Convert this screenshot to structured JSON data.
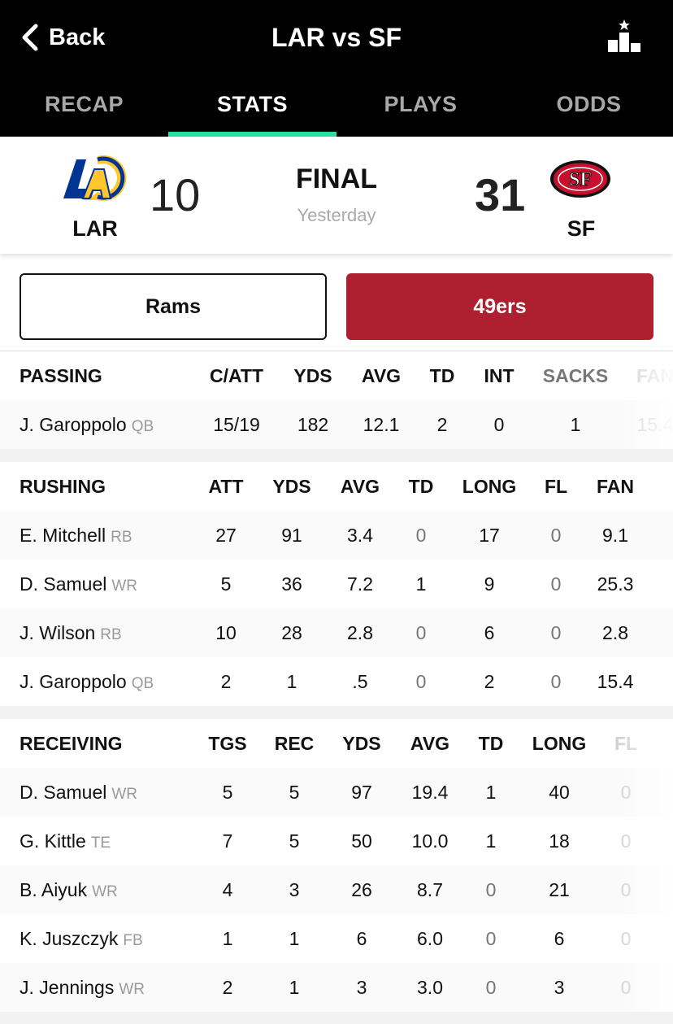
{
  "nav": {
    "back_label": "Back",
    "title": "LAR vs SF",
    "tabs": [
      {
        "label": "RECAP",
        "active": false
      },
      {
        "label": "STATS",
        "active": true
      },
      {
        "label": "PLAYS",
        "active": false
      },
      {
        "label": "ODDS",
        "active": false
      }
    ],
    "rank_icon": "leaderboard-star-icon"
  },
  "scoreboard": {
    "home": {
      "abbr": "LAR",
      "score": "10",
      "logo": "rams-logo"
    },
    "away": {
      "abbr": "SF",
      "score": "31",
      "logo": "49ers-logo"
    },
    "status": "FINAL",
    "when": "Yesterday"
  },
  "toggle": {
    "rams_label": "Rams",
    "niners_label": "49ers",
    "selected": "49ers",
    "selected_color": "#ae1f2f"
  },
  "passing": {
    "category": "PASSING",
    "headers": [
      "C/ATT",
      "YDS",
      "AVG",
      "TD",
      "INT",
      "SACKS",
      "FAN"
    ],
    "rows": [
      {
        "name": "J. Garoppolo",
        "pos": "QB",
        "stats": [
          "15/19",
          "182",
          "12.1",
          "2",
          "0",
          "1",
          "15.4"
        ]
      }
    ]
  },
  "rushing": {
    "category": "RUSHING",
    "headers": [
      "ATT",
      "YDS",
      "AVG",
      "TD",
      "LONG",
      "FL",
      "FAN"
    ],
    "rows": [
      {
        "name": "E. Mitchell",
        "pos": "RB",
        "stats": [
          "27",
          "91",
          "3.4",
          "0",
          "17",
          "0",
          "9.1"
        ]
      },
      {
        "name": "D. Samuel",
        "pos": "WR",
        "stats": [
          "5",
          "36",
          "7.2",
          "1",
          "9",
          "0",
          "25.3"
        ]
      },
      {
        "name": "J. Wilson",
        "pos": "RB",
        "stats": [
          "10",
          "28",
          "2.8",
          "0",
          "6",
          "0",
          "2.8"
        ]
      },
      {
        "name": "J. Garoppolo",
        "pos": "QB",
        "stats": [
          "2",
          "1",
          ".5",
          "0",
          "2",
          "0",
          "15.4"
        ]
      }
    ]
  },
  "receiving": {
    "category": "RECEIVING",
    "headers": [
      "TGS",
      "REC",
      "YDS",
      "AVG",
      "TD",
      "LONG",
      "FL"
    ],
    "rows": [
      {
        "name": "D. Samuel",
        "pos": "WR",
        "stats": [
          "5",
          "5",
          "97",
          "19.4",
          "1",
          "40",
          "0"
        ]
      },
      {
        "name": "G. Kittle",
        "pos": "TE",
        "stats": [
          "7",
          "5",
          "50",
          "10.0",
          "1",
          "18",
          "0"
        ]
      },
      {
        "name": "B. Aiyuk",
        "pos": "WR",
        "stats": [
          "4",
          "3",
          "26",
          "8.7",
          "0",
          "21",
          "0"
        ]
      },
      {
        "name": "K. Juszczyk",
        "pos": "FB",
        "stats": [
          "1",
          "1",
          "6",
          "6.0",
          "0",
          "6",
          "0"
        ]
      },
      {
        "name": "J. Jennings",
        "pos": "WR",
        "stats": [
          "2",
          "1",
          "3",
          "3.0",
          "0",
          "3",
          "0"
        ]
      }
    ]
  }
}
